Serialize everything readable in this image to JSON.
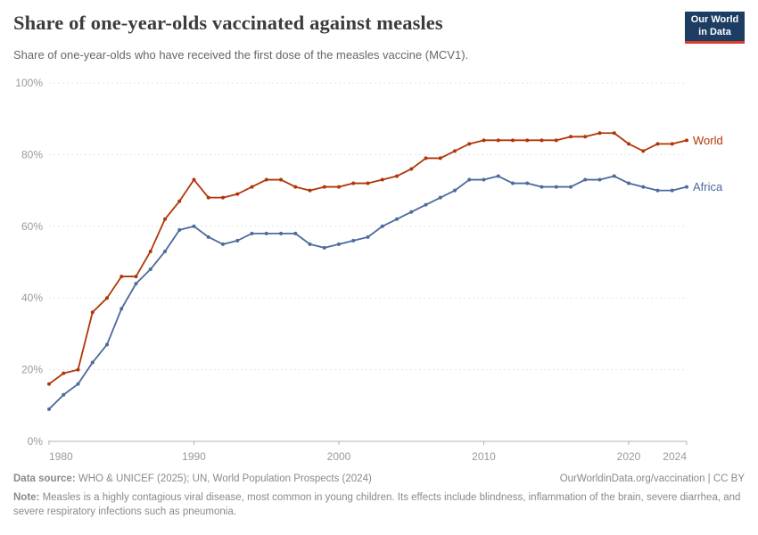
{
  "header": {
    "logo": {
      "line1": "Our World",
      "line2": "in Data"
    }
  },
  "chart_data": {
    "type": "line",
    "title": "Share of one-year-olds vaccinated against measles",
    "subtitle": "Share of one-year-olds who have received the first dose of the measles vaccine (MCV1).",
    "x": [
      1980,
      1981,
      1982,
      1983,
      1984,
      1985,
      1986,
      1987,
      1988,
      1989,
      1990,
      1991,
      1992,
      1993,
      1994,
      1995,
      1996,
      1997,
      1998,
      1999,
      2000,
      2001,
      2002,
      2003,
      2004,
      2005,
      2006,
      2007,
      2008,
      2009,
      2010,
      2011,
      2012,
      2013,
      2014,
      2015,
      2016,
      2017,
      2018,
      2019,
      2020,
      2021,
      2022,
      2023,
      2024
    ],
    "series": [
      {
        "name": "World",
        "color": "#b13507",
        "values": [
          16,
          19,
          20,
          36,
          40,
          46,
          46,
          53,
          62,
          67,
          73,
          68,
          68,
          69,
          71,
          73,
          73,
          71,
          70,
          71,
          71,
          72,
          72,
          73,
          74,
          76,
          79,
          79,
          81,
          83,
          84,
          84,
          84,
          84,
          84,
          84,
          85,
          85,
          86,
          86,
          83,
          81,
          83,
          83,
          84
        ]
      },
      {
        "name": "Africa",
        "color": "#4c6a9c",
        "values": [
          9,
          13,
          16,
          22,
          27,
          37,
          44,
          48,
          53,
          59,
          60,
          57,
          55,
          56,
          58,
          58,
          58,
          58,
          55,
          54,
          55,
          56,
          57,
          60,
          62,
          64,
          66,
          68,
          70,
          73,
          73,
          74,
          72,
          72,
          71,
          71,
          71,
          73,
          73,
          74,
          72,
          71,
          70,
          70,
          71
        ]
      }
    ],
    "xlabel": "",
    "ylabel": "",
    "xlim": [
      1980,
      2024
    ],
    "ylim": [
      0,
      100
    ],
    "xticks": [
      1980,
      1990,
      2000,
      2010,
      2020,
      2024
    ],
    "yticks": [
      0,
      20,
      40,
      60,
      80,
      100
    ],
    "ytick_suffix": "%",
    "grid": "horizontal-dashed",
    "legend_position": "right-end-labels"
  },
  "colors": {
    "grid": "#e3e3e3",
    "axis": "#b3b3b3",
    "tick_label": "#9a9a9a"
  },
  "footer": {
    "datasource_label": "Data source:",
    "datasource_text": " WHO & UNICEF (2025); UN, World Population Prospects (2024)",
    "link_text": "OurWorldinData.org/vaccination | CC BY",
    "note_label": "Note:",
    "note_text": " Measles is a highly contagious viral disease, most common in young children. Its effects include blindness, inflammation of the brain, severe diarrhea, and severe respiratory infections such as pneumonia."
  }
}
